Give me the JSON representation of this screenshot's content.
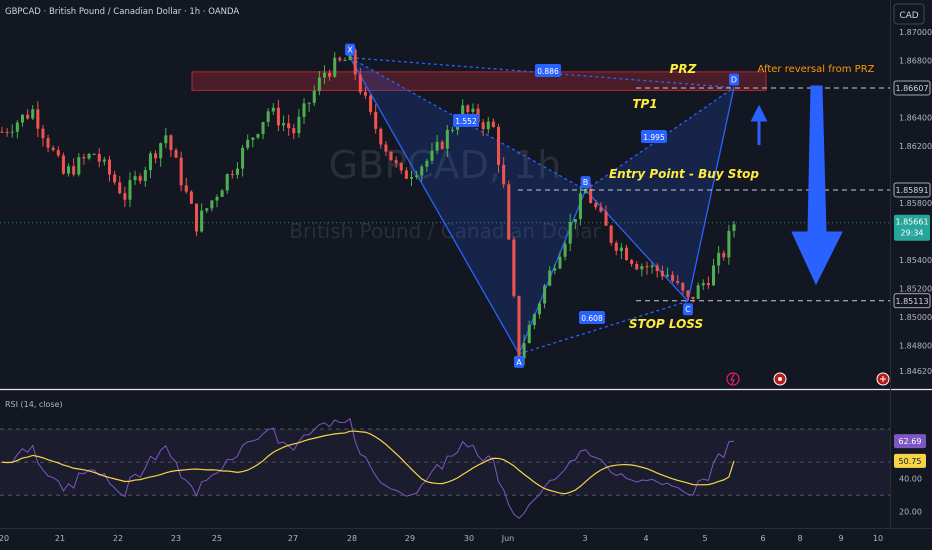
{
  "header": {
    "symbol_line": "GBPCAD · British Pound / Canadian Dollar · 1h · OANDA",
    "currency_button": "CAD"
  },
  "watermark": {
    "ticker": "GBPCAD, 1h",
    "name": "British Pound / Canadian Dollar"
  },
  "colors": {
    "background": "#131722",
    "bull": "#26a69a",
    "bull_bright": "#4caf50",
    "bear": "#ef5350",
    "pattern": "#2962ff",
    "pattern_fill": "rgba(41,98,255,0.18)",
    "prz_fill": "rgba(178,40,51,0.35)",
    "annotation": "#ffeb3b",
    "price_tag": "#2ebd85",
    "rsi_line": "#7e57c2",
    "rsi_ma": "#f5d547"
  },
  "chart_data": [
    {
      "type": "candlestick",
      "symbol": "GBPCAD",
      "timeframe": "1h",
      "ylim": [
        1.846,
        1.871
      ],
      "y_ticks": [
        "1.87000",
        "1.86800",
        "1.86400",
        "1.86200",
        "1.85800",
        "1.85400",
        "1.85200",
        "1.85000",
        "1.84800",
        "1.84620"
      ],
      "x_ticks": [
        "20",
        "21",
        "22",
        "23",
        "25",
        "27",
        "28",
        "29",
        "30",
        "Jun",
        "3",
        "4",
        "5",
        "6",
        "8",
        "9",
        "10"
      ],
      "price_labels": [
        {
          "text": "1.86607",
          "kind": "level"
        },
        {
          "text": "1.85891",
          "kind": "level"
        },
        {
          "text": "1.85661",
          "kind": "current"
        },
        {
          "text": "29:34",
          "kind": "countdown"
        },
        {
          "text": "1.85113",
          "kind": "level"
        }
      ],
      "harmonic_pattern": {
        "points": [
          {
            "label": "X",
            "price": 1.8682
          },
          {
            "label": "A",
            "price": 1.8474
          },
          {
            "label": "B",
            "price": 1.8589
          },
          {
            "label": "C",
            "price": 1.8511
          },
          {
            "label": "D",
            "price": 1.8661
          }
        ],
        "ratios": [
          "0.886",
          "1.552",
          "1.995",
          "0.608"
        ]
      },
      "annotations": [
        "PRZ",
        "After reversal from PRZ",
        "TP1",
        "Entry Point - Buy Stop",
        "STOP LOSS"
      ],
      "levels": [
        1.86607,
        1.85891,
        1.85113
      ]
    },
    {
      "type": "line",
      "title": "RSI (14, close)",
      "ylim": [
        15,
        90
      ],
      "y_ticks": [
        "40.00",
        "20.00"
      ],
      "labels": [
        {
          "text": "62.69",
          "kind": "rsi"
        },
        {
          "text": "50.75",
          "kind": "rsi_ma"
        }
      ]
    }
  ]
}
